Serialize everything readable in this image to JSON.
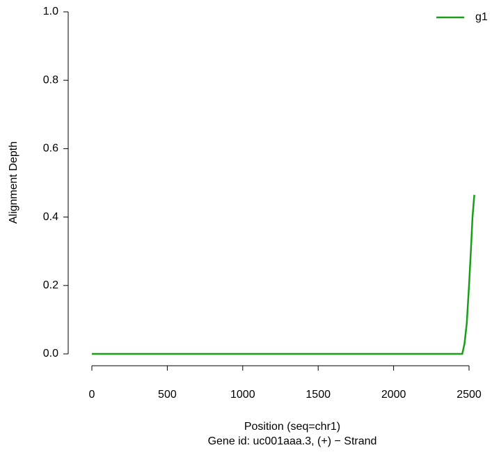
{
  "chart_data": {
    "type": "line",
    "xlabel": "Position (seq=chr1)",
    "caption": "Gene id: uc001aaa.3, (+) − Strand",
    "ylabel": "Alignment Depth",
    "x": [
      0,
      2455,
      2470,
      2485,
      2500,
      2512,
      2523,
      2535
    ],
    "series": [
      {
        "name": "g1",
        "color": "#1a9e1a",
        "values": [
          0,
          0,
          0.03,
          0.09,
          0.2,
          0.3,
          0.4,
          0.465
        ]
      }
    ],
    "xlim": [
      0,
      2535
    ],
    "ylim": [
      0,
      1
    ],
    "xticks": [
      0,
      500,
      1000,
      1500,
      2000,
      2500
    ],
    "yticks": [
      {
        "value": 0,
        "label": "0.0"
      },
      {
        "value": 0.2,
        "label": "0.2"
      },
      {
        "value": 0.4,
        "label": "0.4"
      },
      {
        "value": 0.6,
        "label": "0.6"
      },
      {
        "value": 0.8,
        "label": "0.8"
      },
      {
        "value": 1,
        "label": "1.0"
      }
    ],
    "legend": "top-right",
    "grid": false
  }
}
